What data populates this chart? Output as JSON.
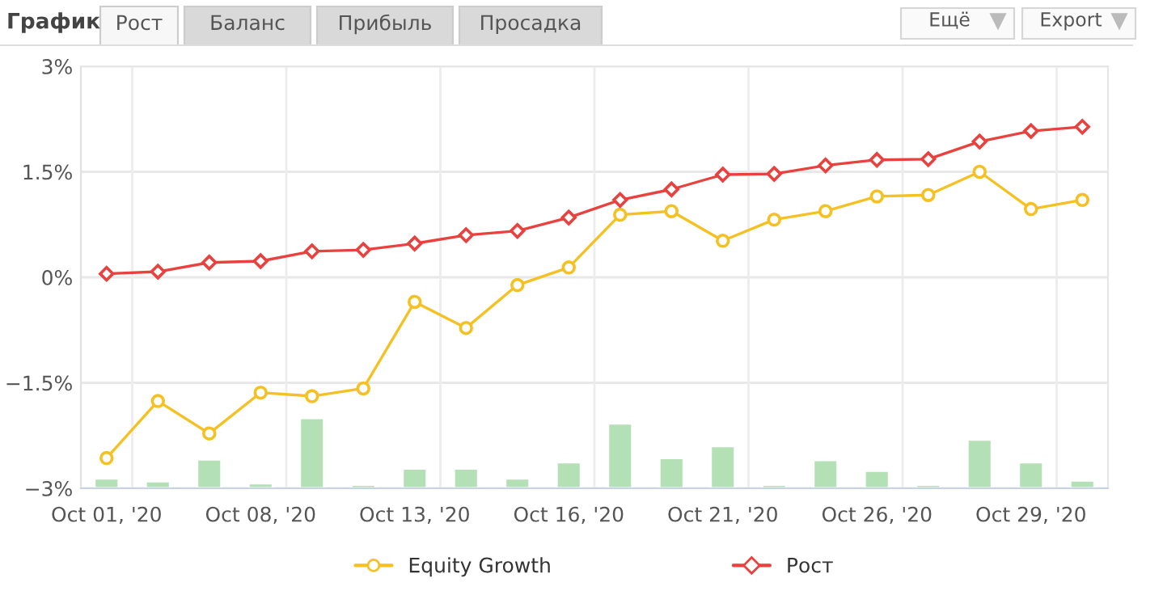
{
  "chart_data": {
    "type": "line",
    "title": "График",
    "annotations": [
      "Рост",
      "Баланс",
      "Прибыль",
      "Просадка",
      "Ещё",
      "Export"
    ],
    "categories": [
      "Oct 01, '20",
      null,
      null,
      "Oct 08, '20",
      null,
      null,
      "Oct 13, '20",
      null,
      null,
      "Oct 16, '20",
      null,
      null,
      "Oct 21, '20",
      null,
      null,
      "Oct 26, '20",
      null,
      null,
      "Oct 29, '20",
      null
    ],
    "series": [
      {
        "type": "bar",
        "color": "#b3e0b5",
        "base": [
          -3,
          -3,
          -3,
          -3,
          -3,
          -3,
          -3,
          -3,
          -3,
          -3,
          -3,
          -3,
          -3,
          -3,
          -3,
          -3,
          -3,
          -3,
          -3,
          -3
        ],
        "values": [
          0.14,
          0.1,
          0.41,
          0.07,
          1.0,
          0.05,
          0.28,
          0.28,
          0.14,
          0.37,
          0.92,
          0.43,
          0.6,
          0.05,
          0.4,
          0.25,
          0.05,
          0.69,
          0.37,
          0.11
        ]
      },
      {
        "name": "Equity Growth",
        "color": "#f5c021",
        "marker": "circle",
        "values": [
          -2.57,
          -1.76,
          -2.22,
          -1.64,
          -1.69,
          -1.58,
          -0.35,
          -0.72,
          -0.11,
          0.14,
          0.89,
          0.94,
          0.52,
          0.82,
          0.94,
          1.15,
          1.17,
          1.5,
          0.97,
          1.1
        ]
      },
      {
        "name": "Рост",
        "color": "#e8413e",
        "marker": "diamond",
        "values": [
          0.05,
          0.08,
          0.21,
          0.23,
          0.37,
          0.39,
          0.48,
          0.6,
          0.66,
          0.85,
          1.1,
          1.25,
          1.46,
          1.47,
          1.59,
          1.67,
          1.68,
          1.93,
          2.08,
          2.14
        ]
      }
    ],
    "ylim": [
      -3,
      3
    ],
    "yticks": [
      {
        "value": -3,
        "label": "−3%"
      },
      {
        "value": -1.5,
        "label": "−1.5%"
      },
      {
        "value": 0,
        "label": "0%"
      },
      {
        "value": 1.5,
        "label": "1.5%"
      },
      {
        "value": 3,
        "label": "3%"
      }
    ],
    "grid": true,
    "legend": "bottom",
    "line_style": "solid"
  }
}
